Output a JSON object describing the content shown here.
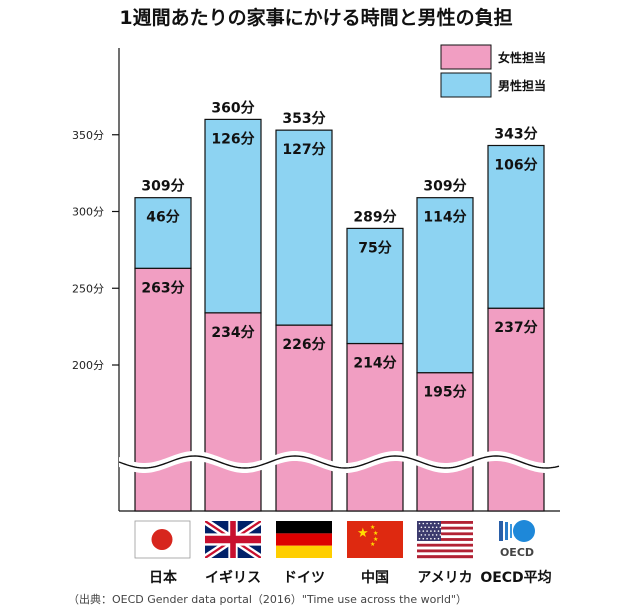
{
  "chart_data": {
    "type": "bar",
    "stacked": true,
    "title": "1週間あたりの家事にかける時間と男性の負担",
    "categories": [
      "日本",
      "イギリス",
      "ドイツ",
      "中国",
      "アメリカ",
      "OECD平均"
    ],
    "series": [
      {
        "name": "女性担当",
        "color": "#F19EC2",
        "values": [
          263,
          234,
          226,
          214,
          195,
          237
        ],
        "labels": [
          "263分",
          "234分",
          "226分",
          "214分",
          "195分",
          "237分"
        ]
      },
      {
        "name": "男性担当",
        "color": "#8DD3F2",
        "values": [
          46,
          126,
          127,
          75,
          114,
          106
        ],
        "labels": [
          "46分",
          "126分",
          "127分",
          "75分",
          "114分",
          "106分"
        ]
      }
    ],
    "totals": [
      309,
      360,
      353,
      289,
      309,
      343
    ],
    "total_labels": [
      "309分",
      "360分",
      "353分",
      "289分",
      "309分",
      "343分"
    ],
    "y_ticks": [
      200,
      250,
      300,
      350
    ],
    "y_tick_labels": [
      "200分",
      "250分",
      "300分",
      "350分"
    ],
    "y_axis_break": true,
    "legend_position": "top-right",
    "grid": false,
    "flags": [
      "japan-flag-icon",
      "uk-flag-icon",
      "germany-flag-icon",
      "china-flag-icon",
      "usa-flag-icon",
      "oecd-logo-icon"
    ],
    "oecd_logo_text": "OECD"
  },
  "source": "（出典：OECD Gender data portal（2016）\"Time use across the world\"）"
}
